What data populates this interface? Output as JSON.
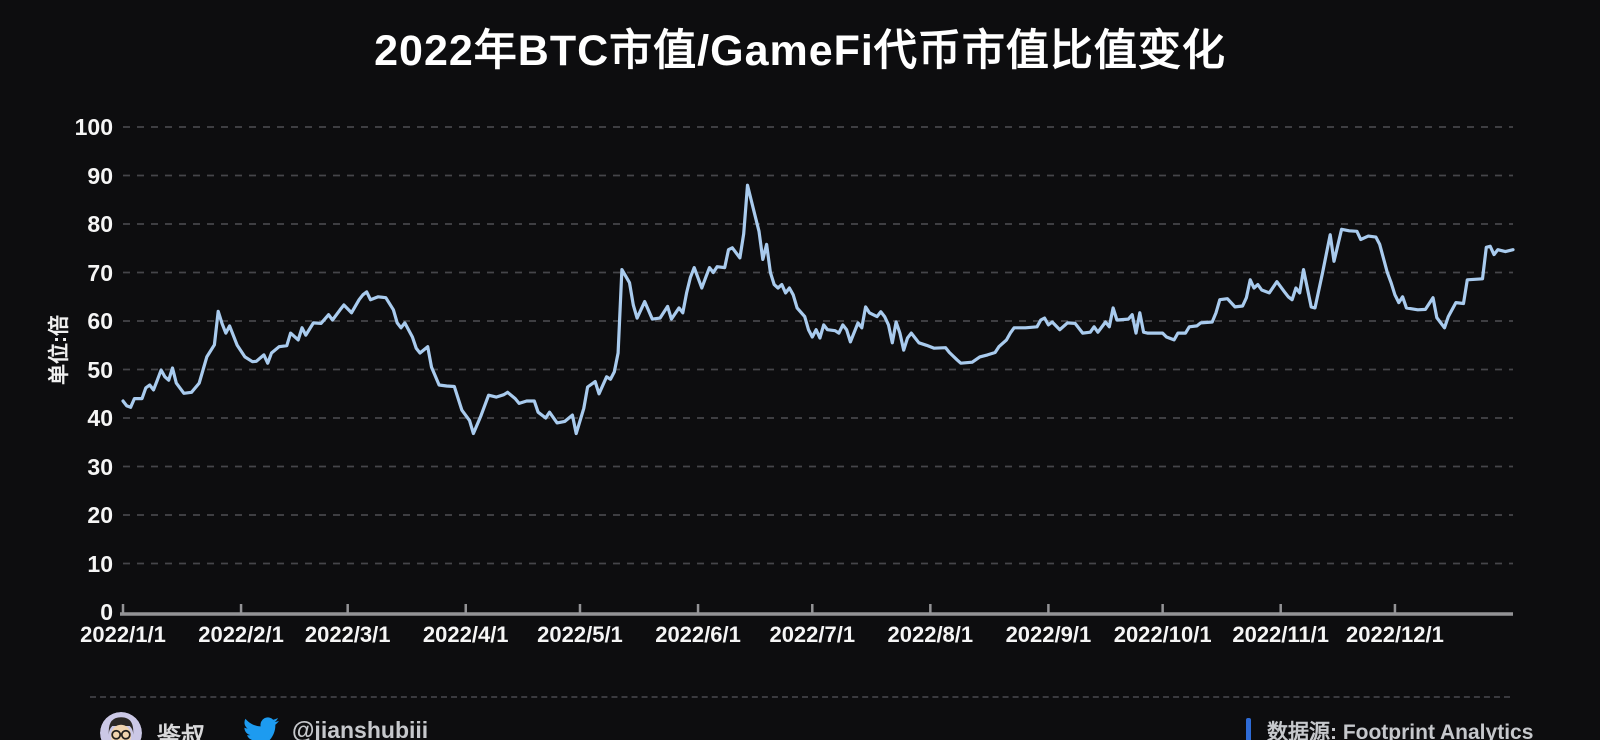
{
  "title": "2022年BTC市值/GameFi代币市值比值变化",
  "colors": {
    "background": "#0d0d0f",
    "line": "#a9cbee",
    "grid": "#45454a",
    "axis": "#939396",
    "text": "#f5f5f5",
    "twitter_blue": "#1d9bf0",
    "source_bar_blue": "#2e6bd6",
    "avatar_bg": "#cbc8e6"
  },
  "y_axis": {
    "unit_label": "单位:倍",
    "ticks": [
      100,
      90,
      80,
      70,
      60,
      50,
      40,
      30,
      20,
      10,
      0
    ]
  },
  "x_axis": {
    "labels": [
      "2022/1/1",
      "2022/2/1",
      "2022/3/1",
      "2022/4/1",
      "2022/5/1",
      "2022/6/1",
      "2022/7/1",
      "2022/8/1",
      "2022/9/1",
      "2022/10/1",
      "2022/11/1",
      "2022/12/1"
    ],
    "month_day_offsets": [
      0,
      31,
      59,
      90,
      120,
      151,
      181,
      212,
      243,
      273,
      304,
      334
    ]
  },
  "footer": {
    "author_name": "鉴叔",
    "twitter_handle": "@jianshubiii",
    "source_label": "数据源: Footprint Analytics",
    "avatar_icon": "cartoon-man-avatar",
    "twitter_icon": "twitter-bird"
  },
  "chart_data": {
    "type": "line",
    "title": "2022年BTC市值/GameFi代币市值比值变化",
    "ylabel": "单位:倍",
    "ylim": [
      0,
      100
    ],
    "x_unit": "day_of_2022",
    "x_range_days": [
      0,
      365
    ],
    "grid": "dashed-horizontal",
    "legend": "none",
    "series": [
      {
        "name": "BTC市值/GameFi代币市值比值",
        "points": [
          [
            0,
            43.5
          ],
          [
            1,
            42.5
          ],
          [
            2,
            42.2
          ],
          [
            3,
            44
          ],
          [
            5,
            44
          ],
          [
            6,
            46.2
          ],
          [
            7,
            46.8
          ],
          [
            8,
            45.8
          ],
          [
            9,
            47.8
          ],
          [
            10,
            49.9
          ],
          [
            11,
            48.5
          ],
          [
            12,
            47.8
          ],
          [
            13,
            50.3
          ],
          [
            14,
            47.2
          ],
          [
            16,
            45.1
          ],
          [
            18,
            45.3
          ],
          [
            20,
            47.2
          ],
          [
            21,
            49.9
          ],
          [
            22,
            52.6
          ],
          [
            24,
            55.1
          ],
          [
            25,
            62
          ],
          [
            26,
            59.5
          ],
          [
            27,
            57.5
          ],
          [
            28,
            59
          ],
          [
            30,
            55
          ],
          [
            32,
            52.6
          ],
          [
            34,
            51.6
          ],
          [
            35,
            51.7
          ],
          [
            37,
            53
          ],
          [
            38,
            51.3
          ],
          [
            39,
            53.4
          ],
          [
            41,
            54.7
          ],
          [
            43,
            54.9
          ],
          [
            44,
            57.5
          ],
          [
            46,
            56.1
          ],
          [
            47,
            58.6
          ],
          [
            48,
            57.1
          ],
          [
            50,
            59.6
          ],
          [
            52,
            59.5
          ],
          [
            54,
            61.3
          ],
          [
            55,
            60.2
          ],
          [
            57,
            62.3
          ],
          [
            58,
            63.3
          ],
          [
            60,
            61.7
          ],
          [
            62,
            64.4
          ],
          [
            63,
            65.4
          ],
          [
            64,
            66
          ],
          [
            65,
            64.4
          ],
          [
            67,
            65
          ],
          [
            69,
            64.8
          ],
          [
            71,
            62.3
          ],
          [
            72,
            59.6
          ],
          [
            73,
            58.6
          ],
          [
            74,
            59.6
          ],
          [
            76,
            56.7
          ],
          [
            77,
            54.4
          ],
          [
            78,
            53.4
          ],
          [
            80,
            54.7
          ],
          [
            81,
            50.5
          ],
          [
            83,
            46.8
          ],
          [
            85,
            46.6
          ],
          [
            87,
            46.5
          ],
          [
            89,
            41.6
          ],
          [
            91,
            39.5
          ],
          [
            92,
            36.8
          ],
          [
            94,
            40.5
          ],
          [
            96,
            44.7
          ],
          [
            98,
            44.3
          ],
          [
            100,
            44.8
          ],
          [
            101,
            45.3
          ],
          [
            103,
            44
          ],
          [
            104,
            43
          ],
          [
            106,
            43.5
          ],
          [
            108,
            43.5
          ],
          [
            109,
            41.2
          ],
          [
            111,
            40
          ],
          [
            112,
            41.2
          ],
          [
            114,
            39
          ],
          [
            116,
            39.3
          ],
          [
            118,
            40.6
          ],
          [
            119,
            36.8
          ],
          [
            121,
            42
          ],
          [
            122,
            46.4
          ],
          [
            124,
            47.5
          ],
          [
            125,
            45
          ],
          [
            127,
            48.5
          ],
          [
            128,
            48
          ],
          [
            129,
            49.5
          ],
          [
            130,
            53.4
          ],
          [
            131,
            70.6
          ],
          [
            133,
            67.9
          ],
          [
            134,
            63.3
          ],
          [
            135,
            60.6
          ],
          [
            137,
            64
          ],
          [
            139,
            60.4
          ],
          [
            141,
            60.6
          ],
          [
            143,
            63
          ],
          [
            144,
            60.4
          ],
          [
            146,
            62.7
          ],
          [
            147,
            61.7
          ],
          [
            148,
            65.8
          ],
          [
            149,
            69
          ],
          [
            150,
            71
          ],
          [
            152,
            66.8
          ],
          [
            153,
            69
          ],
          [
            154,
            71
          ],
          [
            155,
            70
          ],
          [
            156,
            71.2
          ],
          [
            158,
            71
          ],
          [
            159,
            74.7
          ],
          [
            160,
            75.1
          ],
          [
            162,
            73
          ],
          [
            163,
            78
          ],
          [
            164,
            88
          ],
          [
            166,
            81.6
          ],
          [
            167,
            78.5
          ],
          [
            168,
            72.7
          ],
          [
            169,
            75.8
          ],
          [
            170,
            70
          ],
          [
            171,
            67.5
          ],
          [
            172,
            66.8
          ],
          [
            173,
            67.5
          ],
          [
            174,
            65.8
          ],
          [
            175,
            66.8
          ],
          [
            176,
            65.4
          ],
          [
            177,
            62.7
          ],
          [
            179,
            60.9
          ],
          [
            180,
            58.2
          ],
          [
            181,
            56.7
          ],
          [
            182,
            58.2
          ],
          [
            183,
            56.5
          ],
          [
            184,
            59.2
          ],
          [
            185,
            58.2
          ],
          [
            187,
            58
          ],
          [
            188,
            57.5
          ],
          [
            189,
            59.2
          ],
          [
            190,
            58.2
          ],
          [
            191,
            55.7
          ],
          [
            193,
            59.6
          ],
          [
            194,
            58.6
          ],
          [
            195,
            62.9
          ],
          [
            196,
            61.7
          ],
          [
            198,
            60.9
          ],
          [
            199,
            61.9
          ],
          [
            200,
            60.9
          ],
          [
            201,
            59.2
          ],
          [
            202,
            55.5
          ],
          [
            203,
            59.8
          ],
          [
            204,
            57.5
          ],
          [
            205,
            54
          ],
          [
            206,
            56.5
          ],
          [
            207,
            57.5
          ],
          [
            209,
            55.5
          ],
          [
            211,
            55
          ],
          [
            213,
            54.4
          ],
          [
            216,
            54.5
          ],
          [
            217,
            53.5
          ],
          [
            219,
            52
          ],
          [
            220,
            51.3
          ],
          [
            223,
            51.5
          ],
          [
            225,
            52.6
          ],
          [
            227,
            53
          ],
          [
            229,
            53.5
          ],
          [
            230,
            54.7
          ],
          [
            232,
            56.1
          ],
          [
            233,
            57.5
          ],
          [
            234,
            58.6
          ],
          [
            237,
            58.6
          ],
          [
            240,
            58.8
          ],
          [
            241,
            60.2
          ],
          [
            242,
            60.6
          ],
          [
            243,
            59.2
          ],
          [
            244,
            59.8
          ],
          [
            246,
            58.2
          ],
          [
            248,
            59.6
          ],
          [
            250,
            59.5
          ],
          [
            252,
            57.5
          ],
          [
            254,
            57.7
          ],
          [
            255,
            58.8
          ],
          [
            256,
            57.7
          ],
          [
            258,
            59.8
          ],
          [
            259,
            58.8
          ],
          [
            260,
            62.7
          ],
          [
            261,
            60.2
          ],
          [
            264,
            60.4
          ],
          [
            265,
            61.3
          ],
          [
            266,
            57.5
          ],
          [
            267,
            61.7
          ],
          [
            268,
            57.7
          ],
          [
            269,
            57.5
          ],
          [
            273,
            57.5
          ],
          [
            274,
            56.7
          ],
          [
            276,
            56.1
          ],
          [
            277,
            57.5
          ],
          [
            279,
            57.5
          ],
          [
            280,
            58.8
          ],
          [
            282,
            59
          ],
          [
            283,
            59.6
          ],
          [
            286,
            59.8
          ],
          [
            287,
            61.7
          ],
          [
            288,
            64.4
          ],
          [
            290,
            64.6
          ],
          [
            292,
            62.9
          ],
          [
            294,
            63.1
          ],
          [
            295,
            64.8
          ],
          [
            296,
            68.5
          ],
          [
            297,
            66.8
          ],
          [
            298,
            67.5
          ],
          [
            299,
            66.4
          ],
          [
            301,
            65.8
          ],
          [
            303,
            68.1
          ],
          [
            305,
            66
          ],
          [
            306,
            65
          ],
          [
            307,
            64.4
          ],
          [
            308,
            66.8
          ],
          [
            309,
            65.8
          ],
          [
            310,
            70.6
          ],
          [
            312,
            62.9
          ],
          [
            313,
            62.7
          ],
          [
            315,
            70
          ],
          [
            317,
            77.8
          ],
          [
            318,
            72.3
          ],
          [
            320,
            78.9
          ],
          [
            322,
            78.6
          ],
          [
            324,
            78.5
          ],
          [
            325,
            76.8
          ],
          [
            327,
            77.5
          ],
          [
            329,
            77.3
          ],
          [
            330,
            75.8
          ],
          [
            332,
            70
          ],
          [
            333,
            67.9
          ],
          [
            334,
            65.4
          ],
          [
            335,
            63.8
          ],
          [
            336,
            65
          ],
          [
            337,
            62.7
          ],
          [
            340,
            62.3
          ],
          [
            342,
            62.4
          ],
          [
            344,
            64.8
          ],
          [
            345,
            60.7
          ],
          [
            347,
            58.6
          ],
          [
            348,
            60.9
          ],
          [
            350,
            63.8
          ],
          [
            352,
            63.6
          ],
          [
            353,
            68.5
          ],
          [
            357,
            68.7
          ],
          [
            358,
            75.2
          ],
          [
            359,
            75.4
          ],
          [
            360,
            73.7
          ],
          [
            361,
            74.7
          ],
          [
            363,
            74.3
          ],
          [
            365,
            74.7
          ]
        ]
      }
    ]
  }
}
